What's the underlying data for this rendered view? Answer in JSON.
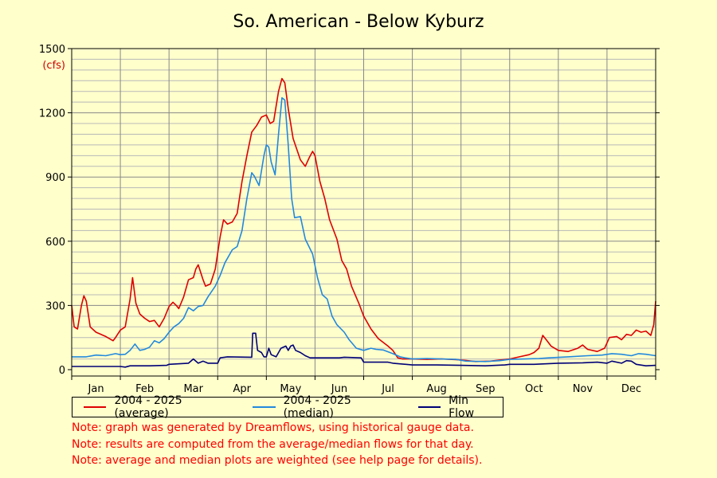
{
  "chart_data": {
    "type": "line",
    "title": "So. American - Below Kyburz",
    "ylabel": "(cfs)",
    "ylim": [
      0,
      1500
    ],
    "yticks": [
      0,
      300,
      600,
      900,
      1200,
      1500
    ],
    "ytick_labels": [
      "0",
      "300",
      "600",
      "900",
      "1200",
      "1500"
    ],
    "xlim": [
      0,
      12
    ],
    "categories": [
      "Jan",
      "Feb",
      "Mar",
      "Apr",
      "May",
      "Jun",
      "Jul",
      "Aug",
      "Sep",
      "Oct",
      "Nov",
      "Dec"
    ],
    "grid": true,
    "legend_position": "bottom",
    "series": [
      {
        "name": "2004 - 2025 (average)",
        "color": "#dd0000",
        "points": [
          [
            0,
            300
          ],
          [
            0.05,
            200
          ],
          [
            0.12,
            190
          ],
          [
            0.2,
            300
          ],
          [
            0.25,
            345
          ],
          [
            0.3,
            320
          ],
          [
            0.38,
            200
          ],
          [
            0.5,
            175
          ],
          [
            0.7,
            155
          ],
          [
            0.85,
            135
          ],
          [
            0.9,
            150
          ],
          [
            1.0,
            185
          ],
          [
            1.1,
            200
          ],
          [
            1.2,
            330
          ],
          [
            1.25,
            430
          ],
          [
            1.32,
            310
          ],
          [
            1.4,
            260
          ],
          [
            1.5,
            240
          ],
          [
            1.6,
            225
          ],
          [
            1.7,
            230
          ],
          [
            1.8,
            200
          ],
          [
            1.9,
            240
          ],
          [
            2.0,
            295
          ],
          [
            2.08,
            315
          ],
          [
            2.15,
            300
          ],
          [
            2.2,
            285
          ],
          [
            2.3,
            340
          ],
          [
            2.4,
            420
          ],
          [
            2.5,
            430
          ],
          [
            2.55,
            470
          ],
          [
            2.6,
            490
          ],
          [
            2.7,
            420
          ],
          [
            2.75,
            390
          ],
          [
            2.85,
            400
          ],
          [
            2.95,
            470
          ],
          [
            3.05,
            620
          ],
          [
            3.12,
            700
          ],
          [
            3.2,
            680
          ],
          [
            3.3,
            690
          ],
          [
            3.4,
            730
          ],
          [
            3.5,
            880
          ],
          [
            3.6,
            1000
          ],
          [
            3.7,
            1110
          ],
          [
            3.8,
            1140
          ],
          [
            3.9,
            1180
          ],
          [
            4.0,
            1190
          ],
          [
            4.08,
            1150
          ],
          [
            4.15,
            1160
          ],
          [
            4.25,
            1300
          ],
          [
            4.32,
            1360
          ],
          [
            4.38,
            1340
          ],
          [
            4.45,
            1220
          ],
          [
            4.55,
            1080
          ],
          [
            4.7,
            980
          ],
          [
            4.8,
            950
          ],
          [
            4.88,
            990
          ],
          [
            4.95,
            1020
          ],
          [
            5.0,
            1000
          ],
          [
            5.1,
            880
          ],
          [
            5.2,
            800
          ],
          [
            5.3,
            700
          ],
          [
            5.45,
            610
          ],
          [
            5.55,
            510
          ],
          [
            5.65,
            470
          ],
          [
            5.75,
            390
          ],
          [
            5.9,
            310
          ],
          [
            6.0,
            250
          ],
          [
            6.15,
            190
          ],
          [
            6.3,
            145
          ],
          [
            6.5,
            110
          ],
          [
            6.6,
            90
          ],
          [
            6.7,
            55
          ],
          [
            6.8,
            50
          ],
          [
            7.0,
            50
          ],
          [
            7.3,
            48
          ],
          [
            7.6,
            50
          ],
          [
            7.9,
            47
          ],
          [
            8.1,
            43
          ],
          [
            8.3,
            38
          ],
          [
            8.6,
            40
          ],
          [
            8.8,
            45
          ],
          [
            9.0,
            50
          ],
          [
            9.2,
            60
          ],
          [
            9.4,
            70
          ],
          [
            9.5,
            80
          ],
          [
            9.6,
            100
          ],
          [
            9.68,
            160
          ],
          [
            9.75,
            140
          ],
          [
            9.85,
            110
          ],
          [
            10.0,
            90
          ],
          [
            10.2,
            85
          ],
          [
            10.4,
            100
          ],
          [
            10.5,
            115
          ],
          [
            10.6,
            95
          ],
          [
            10.8,
            85
          ],
          [
            10.95,
            100
          ],
          [
            11.05,
            150
          ],
          [
            11.2,
            155
          ],
          [
            11.3,
            140
          ],
          [
            11.4,
            165
          ],
          [
            11.5,
            160
          ],
          [
            11.6,
            185
          ],
          [
            11.7,
            175
          ],
          [
            11.8,
            180
          ],
          [
            11.9,
            160
          ],
          [
            11.96,
            210
          ],
          [
            12.0,
            320
          ]
        ]
      },
      {
        "name": "2004 - 2025 (median)",
        "color": "#2288dd",
        "points": [
          [
            0,
            60
          ],
          [
            0.3,
            60
          ],
          [
            0.5,
            68
          ],
          [
            0.7,
            65
          ],
          [
            0.9,
            75
          ],
          [
            1.0,
            70
          ],
          [
            1.1,
            72
          ],
          [
            1.2,
            90
          ],
          [
            1.3,
            120
          ],
          [
            1.4,
            90
          ],
          [
            1.5,
            95
          ],
          [
            1.6,
            105
          ],
          [
            1.7,
            135
          ],
          [
            1.8,
            125
          ],
          [
            1.9,
            145
          ],
          [
            2.0,
            175
          ],
          [
            2.1,
            200
          ],
          [
            2.2,
            215
          ],
          [
            2.3,
            240
          ],
          [
            2.4,
            290
          ],
          [
            2.5,
            275
          ],
          [
            2.6,
            295
          ],
          [
            2.7,
            300
          ],
          [
            2.8,
            340
          ],
          [
            2.95,
            390
          ],
          [
            3.05,
            440
          ],
          [
            3.15,
            500
          ],
          [
            3.3,
            560
          ],
          [
            3.4,
            575
          ],
          [
            3.5,
            650
          ],
          [
            3.6,
            800
          ],
          [
            3.7,
            920
          ],
          [
            3.75,
            905
          ],
          [
            3.85,
            860
          ],
          [
            3.95,
            1000
          ],
          [
            4.0,
            1050
          ],
          [
            4.05,
            1040
          ],
          [
            4.1,
            970
          ],
          [
            4.18,
            910
          ],
          [
            4.25,
            1100
          ],
          [
            4.32,
            1270
          ],
          [
            4.38,
            1260
          ],
          [
            4.45,
            1050
          ],
          [
            4.52,
            800
          ],
          [
            4.58,
            710
          ],
          [
            4.7,
            715
          ],
          [
            4.8,
            610
          ],
          [
            4.95,
            540
          ],
          [
            5.05,
            430
          ],
          [
            5.15,
            350
          ],
          [
            5.25,
            330
          ],
          [
            5.35,
            250
          ],
          [
            5.45,
            210
          ],
          [
            5.6,
            175
          ],
          [
            5.7,
            140
          ],
          [
            5.85,
            100
          ],
          [
            6.0,
            90
          ],
          [
            6.15,
            100
          ],
          [
            6.25,
            95
          ],
          [
            6.4,
            92
          ],
          [
            6.6,
            75
          ],
          [
            6.75,
            60
          ],
          [
            6.85,
            55
          ],
          [
            7.0,
            50
          ],
          [
            7.3,
            52
          ],
          [
            7.6,
            50
          ],
          [
            7.9,
            48
          ],
          [
            8.1,
            40
          ],
          [
            8.5,
            38
          ],
          [
            8.8,
            42
          ],
          [
            9.0,
            48
          ],
          [
            9.3,
            50
          ],
          [
            9.6,
            52
          ],
          [
            9.8,
            55
          ],
          [
            10.2,
            60
          ],
          [
            10.6,
            65
          ],
          [
            10.9,
            68
          ],
          [
            11.1,
            75
          ],
          [
            11.3,
            72
          ],
          [
            11.5,
            65
          ],
          [
            11.65,
            75
          ],
          [
            11.8,
            72
          ],
          [
            12.0,
            65
          ]
        ]
      },
      {
        "name": "Min Flow",
        "color": "#000077",
        "points": [
          [
            0,
            15
          ],
          [
            1.0,
            15
          ],
          [
            1.1,
            12
          ],
          [
            1.2,
            18
          ],
          [
            1.6,
            18
          ],
          [
            1.95,
            20
          ],
          [
            2.0,
            25
          ],
          [
            2.4,
            30
          ],
          [
            2.5,
            50
          ],
          [
            2.6,
            30
          ],
          [
            2.7,
            40
          ],
          [
            2.8,
            30
          ],
          [
            3.0,
            30
          ],
          [
            3.05,
            55
          ],
          [
            3.2,
            60
          ],
          [
            3.7,
            58
          ],
          [
            3.72,
            170
          ],
          [
            3.78,
            170
          ],
          [
            3.82,
            90
          ],
          [
            3.9,
            80
          ],
          [
            3.95,
            60
          ],
          [
            4.0,
            60
          ],
          [
            4.05,
            100
          ],
          [
            4.1,
            70
          ],
          [
            4.2,
            60
          ],
          [
            4.3,
            100
          ],
          [
            4.4,
            110
          ],
          [
            4.45,
            90
          ],
          [
            4.5,
            110
          ],
          [
            4.55,
            115
          ],
          [
            4.6,
            90
          ],
          [
            4.7,
            80
          ],
          [
            4.8,
            65
          ],
          [
            4.9,
            55
          ],
          [
            5.5,
            55
          ],
          [
            5.6,
            58
          ],
          [
            5.95,
            55
          ],
          [
            6.0,
            35
          ],
          [
            6.5,
            35
          ],
          [
            6.6,
            30
          ],
          [
            7.0,
            22
          ],
          [
            7.5,
            22
          ],
          [
            8.0,
            20
          ],
          [
            8.5,
            18
          ],
          [
            8.9,
            22
          ],
          [
            9.0,
            25
          ],
          [
            9.5,
            25
          ],
          [
            10.0,
            30
          ],
          [
            10.5,
            32
          ],
          [
            10.8,
            35
          ],
          [
            11.0,
            30
          ],
          [
            11.1,
            40
          ],
          [
            11.3,
            30
          ],
          [
            11.4,
            42
          ],
          [
            11.5,
            40
          ],
          [
            11.6,
            25
          ],
          [
            11.8,
            18
          ],
          [
            12.0,
            20
          ]
        ]
      }
    ]
  },
  "notes": [
    "Note: graph was generated by Dreamflows, using historical gauge data.",
    "Note: results are computed from the average/median flows for that day.",
    "Note: average and median plots are weighted (see help page for details)."
  ]
}
